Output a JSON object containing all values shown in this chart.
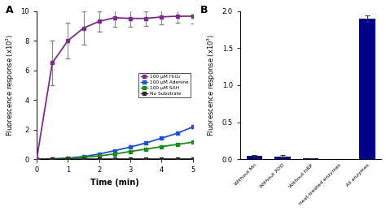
{
  "panel_A": {
    "time": [
      0,
      0.5,
      1.0,
      1.5,
      2.0,
      2.5,
      3.0,
      3.5,
      4.0,
      4.5,
      5.0
    ],
    "h2o2": [
      0,
      6.5,
      8.0,
      8.85,
      9.3,
      9.55,
      9.5,
      9.5,
      9.6,
      9.65,
      9.65
    ],
    "h2o2_err": [
      0,
      1.5,
      1.2,
      1.1,
      0.7,
      0.6,
      0.55,
      0.5,
      0.5,
      0.45,
      0.5
    ],
    "adenine": [
      0,
      0.02,
      0.08,
      0.18,
      0.35,
      0.58,
      0.82,
      1.1,
      1.42,
      1.75,
      2.18
    ],
    "adenine_err": [
      0,
      0.01,
      0.02,
      0.03,
      0.04,
      0.04,
      0.05,
      0.05,
      0.06,
      0.06,
      0.07
    ],
    "sah": [
      0,
      0.01,
      0.05,
      0.12,
      0.22,
      0.36,
      0.52,
      0.68,
      0.85,
      1.0,
      1.15
    ],
    "sah_err": [
      0,
      0.01,
      0.02,
      0.02,
      0.03,
      0.03,
      0.04,
      0.04,
      0.04,
      0.04,
      0.05
    ],
    "no_sub": [
      0,
      0.003,
      0.005,
      0.007,
      0.008,
      0.009,
      0.01,
      0.01,
      0.01,
      0.01,
      0.01
    ],
    "no_sub_err": [
      0,
      0.001,
      0.001,
      0.001,
      0.001,
      0.001,
      0.001,
      0.001,
      0.001,
      0.001,
      0.001
    ],
    "color_h2o2": "#7B2D8B",
    "color_adenine": "#1F4FD4",
    "color_sah": "#1A8C1A",
    "color_no_sub": "#2A2A2A",
    "color_h2o2_err": "#888888",
    "ylabel": "Fluorescence response (x10$^3$)",
    "xlabel": "Time (min)",
    "ylim": [
      0,
      10
    ],
    "yticks": [
      0,
      2,
      4,
      6,
      8,
      10
    ],
    "xlim": [
      0,
      5
    ],
    "xticks": [
      0,
      1,
      2,
      3,
      4,
      5
    ],
    "legend_labels": [
      "100 μM H₂O₂",
      "100 μM Adenine",
      "100 μM SAH",
      "No Substrate"
    ]
  },
  "panel_B": {
    "categories": [
      "Without Mn",
      "Without XOD",
      "Without HRP",
      "Heat-treated enzymes",
      "All enzymes"
    ],
    "values": [
      0.043,
      0.04,
      0.008,
      0.003,
      1.9
    ],
    "errors": [
      0.012,
      0.012,
      0.004,
      0.002,
      0.045
    ],
    "bar_color": "#00008B",
    "ylabel": "Fluorescence response (x10$^3$)",
    "ylim": [
      0,
      2.0
    ],
    "yticks": [
      0.0,
      0.5,
      1.0,
      1.5,
      2.0
    ]
  },
  "background_color": "#ffffff"
}
